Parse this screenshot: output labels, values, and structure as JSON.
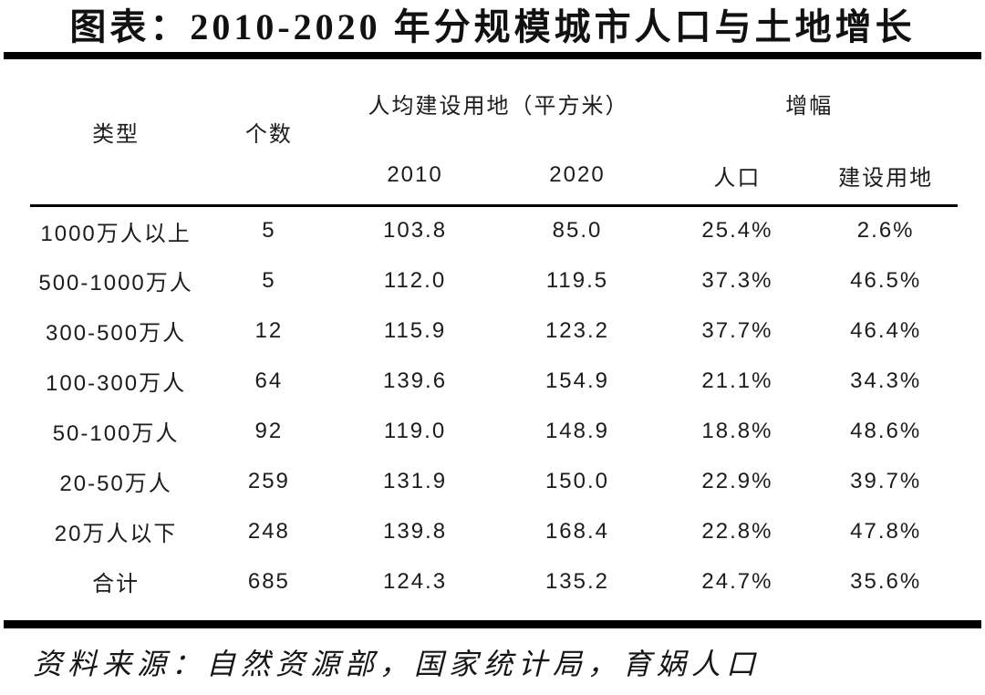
{
  "title": "图表：2010-2020 年分规模城市人口与土地增长",
  "source_note": "资料来源：自然资源部，国家统计局，育娲人口",
  "colors": {
    "background": "#ffffff",
    "text": "#1c1c1c",
    "rule": "#000000"
  },
  "chart_data": {
    "type": "table",
    "title": "2010-2020 年分规模城市人口与土地增长",
    "column_groups": [
      {
        "label": "人均建设用地（平方米）",
        "columns": [
          "2010",
          "2020"
        ]
      },
      {
        "label": "增幅",
        "columns": [
          "人口",
          "建设用地"
        ]
      }
    ],
    "columns": [
      "类型",
      "个数",
      "2010",
      "2020",
      "人口",
      "建设用地"
    ],
    "rows": [
      [
        "1000万人以上",
        "5",
        "103.8",
        "85.0",
        "25.4%",
        "2.6%"
      ],
      [
        "500-1000万人",
        "5",
        "112.0",
        "119.5",
        "37.3%",
        "46.5%"
      ],
      [
        "300-500万人",
        "12",
        "115.9",
        "123.2",
        "37.7%",
        "46.4%"
      ],
      [
        "100-300万人",
        "64",
        "139.6",
        "154.9",
        "21.1%",
        "34.3%"
      ],
      [
        "50-100万人",
        "92",
        "119.0",
        "148.9",
        "18.8%",
        "48.6%"
      ],
      [
        "20-50万人",
        "259",
        "131.9",
        "150.0",
        "22.9%",
        "39.7%"
      ],
      [
        "20万人以下",
        "248",
        "139.8",
        "168.4",
        "22.8%",
        "47.8%"
      ],
      [
        "合计",
        "685",
        "124.3",
        "135.2",
        "24.7%",
        "35.6%"
      ]
    ]
  }
}
